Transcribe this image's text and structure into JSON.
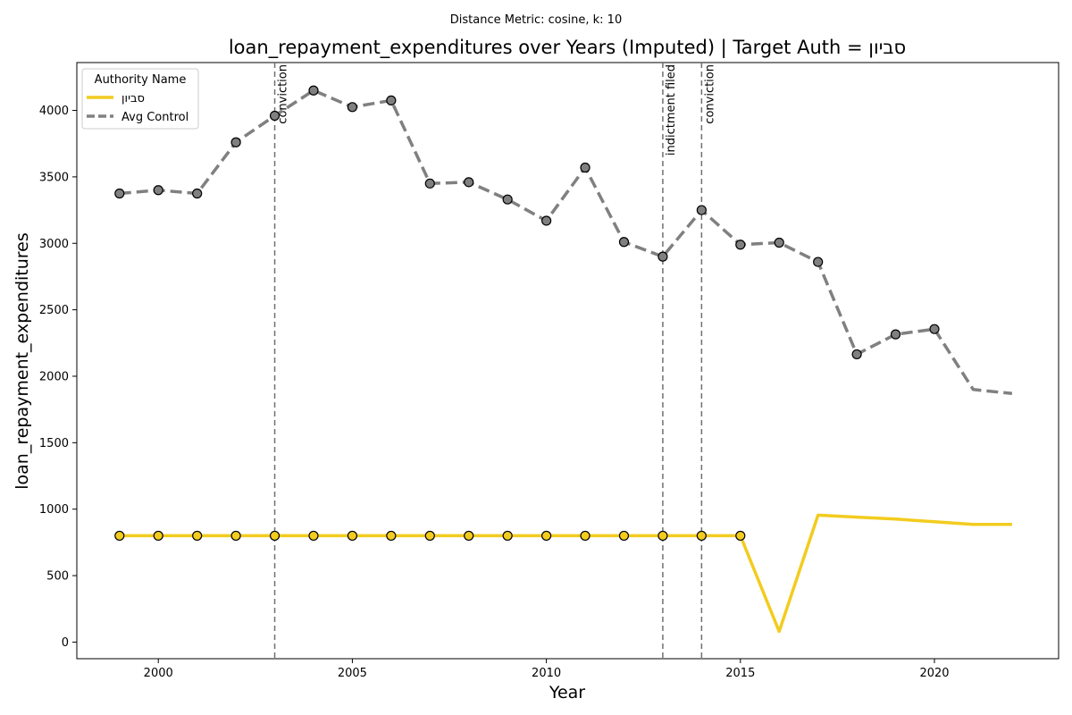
{
  "suptitle": "Distance Metric: cosine, k: 10",
  "chart_data": {
    "type": "line",
    "title": "loan_repayment_expenditures over Years (Imputed) | Target Auth = סביון",
    "xlabel": "Year",
    "ylabel": "loan_repayment_expenditures",
    "xlim": [
      1997.9,
      2023.2
    ],
    "ylim": [
      -125,
      4360
    ],
    "xticks": [
      2000,
      2005,
      2010,
      2015,
      2020
    ],
    "yticks": [
      0,
      500,
      1000,
      1500,
      2000,
      2500,
      3000,
      3500,
      4000
    ],
    "grid": false,
    "legend": {
      "title": "Authority Name",
      "placement": "top-left",
      "entries": [
        "סביון",
        "Avg Control"
      ]
    },
    "series": [
      {
        "name": "סביון",
        "color": "#f2cc1f",
        "style": "solid",
        "x": [
          1999,
          2000,
          2001,
          2002,
          2003,
          2004,
          2005,
          2006,
          2007,
          2008,
          2009,
          2010,
          2011,
          2012,
          2013,
          2014,
          2015,
          2016,
          2017,
          2018,
          2019,
          2020,
          2021,
          2022
        ],
        "y": [
          800,
          800,
          800,
          800,
          800,
          800,
          800,
          800,
          800,
          800,
          800,
          800,
          800,
          800,
          800,
          800,
          800,
          80,
          955,
          940,
          925,
          905,
          885,
          885
        ],
        "markers_through": 2015
      },
      {
        "name": "Avg Control",
        "color": "#808080",
        "style": "dashed",
        "x": [
          1999,
          2000,
          2001,
          2002,
          2003,
          2004,
          2005,
          2006,
          2007,
          2008,
          2009,
          2010,
          2011,
          2012,
          2013,
          2014,
          2015,
          2016,
          2017,
          2018,
          2019,
          2020,
          2021,
          2022
        ],
        "y": [
          3375,
          3400,
          3375,
          3760,
          3960,
          4150,
          4025,
          4075,
          3450,
          3460,
          3330,
          3170,
          3570,
          3010,
          2900,
          3250,
          2990,
          3005,
          2860,
          2165,
          2315,
          2355,
          1900,
          1870
        ],
        "markers_through": 2020
      }
    ],
    "events": [
      {
        "x": 2003,
        "label": "conviction"
      },
      {
        "x": 2013,
        "label": "indictment filed"
      },
      {
        "x": 2014,
        "label": "conviction"
      }
    ]
  }
}
